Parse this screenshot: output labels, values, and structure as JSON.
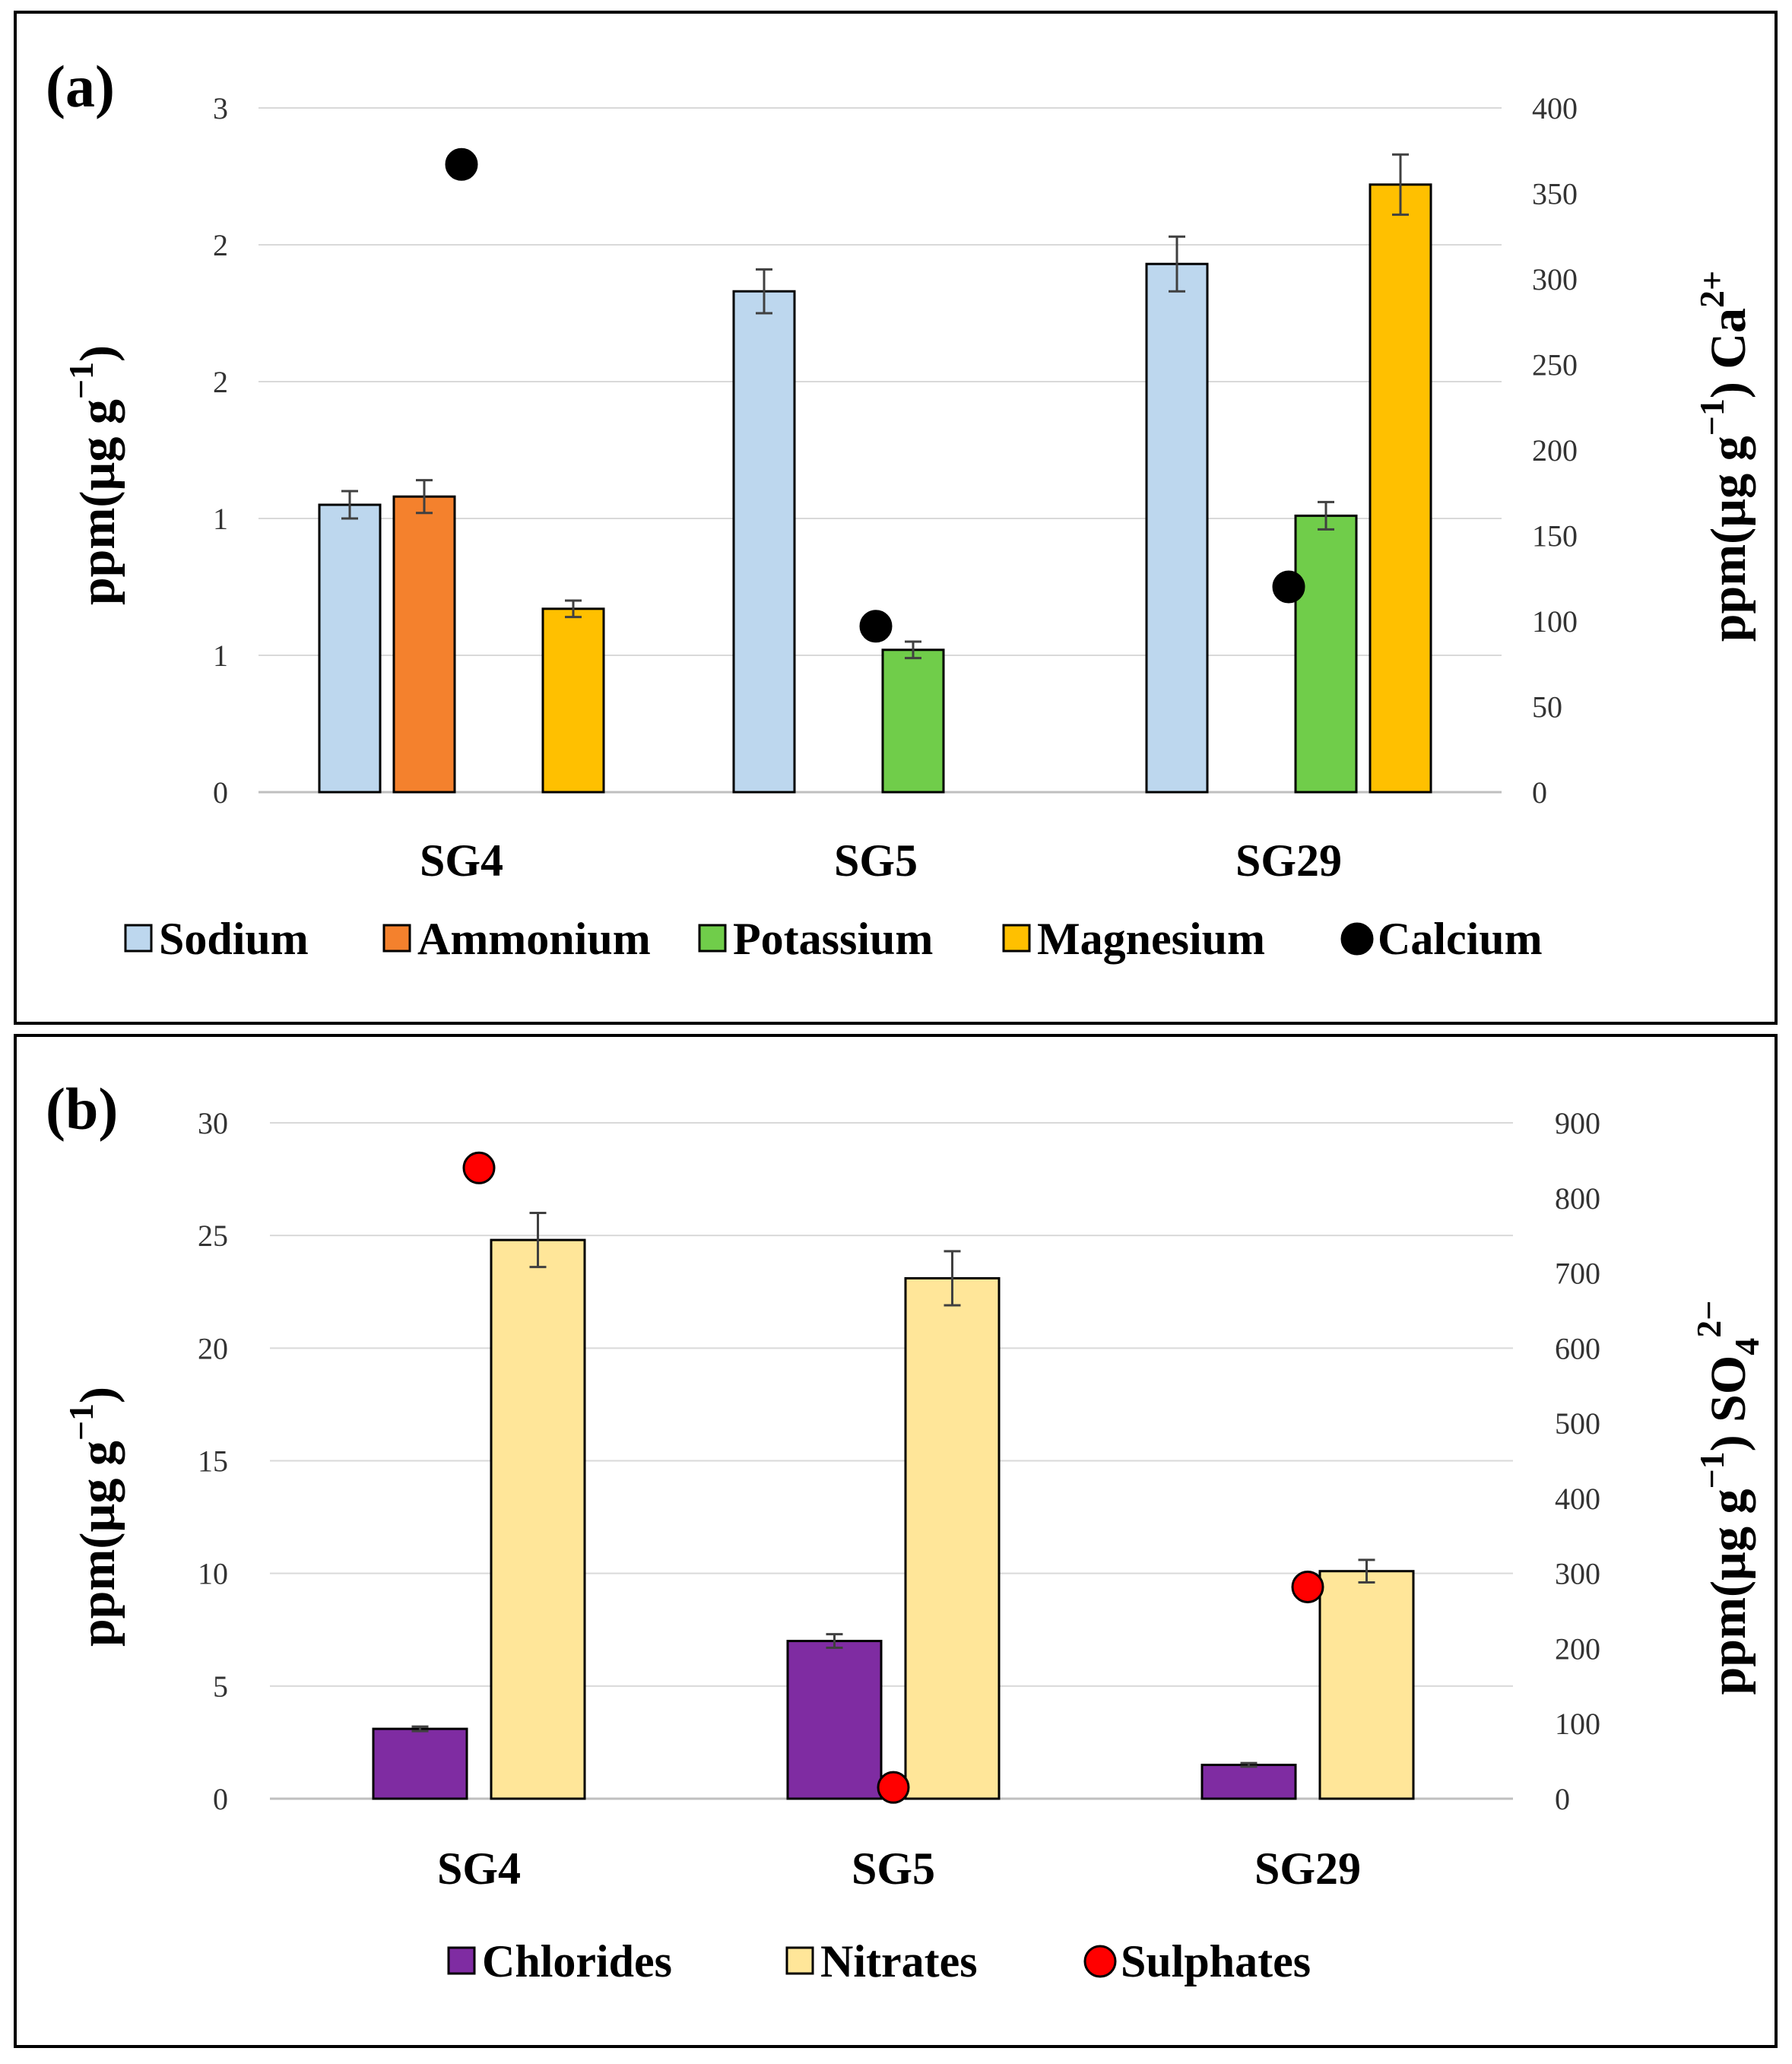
{
  "chart_data": [
    {
      "type": "bar",
      "panel_label": "(a)",
      "categories": [
        "SG4",
        "SG5",
        "SG29"
      ],
      "ylabel": "ppm(µg g",
      "ylabel_sup": "−1",
      "ylabel_end": ")",
      "y2label": "ppm(µg g",
      "y2label_sup": "−1",
      "y2label_mid": ") Ca",
      "y2label_sup2": "2+",
      "ylim": [
        0,
        2.5
      ],
      "ytick_values": [
        0,
        0.5,
        1,
        1.5,
        2,
        2.5
      ],
      "ytick_labels": [
        "0",
        "1",
        "1",
        "2",
        "2",
        "3"
      ],
      "y2lim": [
        0,
        400
      ],
      "y2ticks": [
        "0",
        "50",
        "100",
        "150",
        "200",
        "250",
        "300",
        "350",
        "400"
      ],
      "series": [
        {
          "name": "Sodium",
          "color": "#bdd7ee",
          "values": [
            1.05,
            1.83,
            1.93
          ],
          "errors": [
            0.05,
            0.08,
            0.1
          ],
          "axis": "left"
        },
        {
          "name": "Ammonium",
          "color": "#f4812d",
          "values": [
            1.08,
            null,
            null
          ],
          "errors": [
            0.06,
            null,
            null
          ],
          "axis": "left"
        },
        {
          "name": "Potassium",
          "color": "#70cd4a",
          "values": [
            null,
            0.52,
            1.01
          ],
          "errors": [
            null,
            0.03,
            0.05
          ],
          "axis": "left"
        },
        {
          "name": "Magnesium",
          "color": "#ffc000",
          "values": [
            0.67,
            null,
            2.22
          ],
          "errors": [
            0.03,
            null,
            0.11
          ],
          "axis": "left"
        },
        {
          "name": "Calcium",
          "color": "#000000",
          "values": [
            367,
            97,
            120
          ],
          "type": "scatter",
          "axis": "right"
        }
      ],
      "legend_position": "bottom"
    },
    {
      "type": "bar",
      "panel_label": "(b)",
      "categories": [
        "SG4",
        "SG5",
        "SG29"
      ],
      "ylabel": "ppm(µg g",
      "ylabel_sup": "−1",
      "ylabel_end": ")",
      "y2label": "ppm(µg g",
      "y2label_sup": "−1",
      "y2label_mid": ") SO",
      "y2label_sub": "4",
      "y2label_sup2": "2−",
      "ylim": [
        0,
        30
      ],
      "ytick_values": [
        0,
        5,
        10,
        15,
        20,
        25,
        30
      ],
      "ytick_labels": [
        "0",
        "5",
        "10",
        "15",
        "20",
        "25",
        "30"
      ],
      "y2lim": [
        0,
        900
      ],
      "y2ticks": [
        "0",
        "100",
        "200",
        "300",
        "400",
        "500",
        "600",
        "700",
        "800",
        "900"
      ],
      "series": [
        {
          "name": "Chlorides",
          "color": "#7f2ca2",
          "values": [
            3.1,
            7.0,
            1.5
          ],
          "errors": [
            0.1,
            0.3,
            0.08
          ],
          "axis": "left"
        },
        {
          "name": "Nitrates",
          "color": "#ffe699",
          "values": [
            24.8,
            23.1,
            10.1
          ],
          "errors": [
            1.2,
            1.2,
            0.5
          ],
          "axis": "left"
        },
        {
          "name": "Sulphates",
          "color": "#ff0000",
          "values": [
            840,
            15,
            282
          ],
          "type": "scatter",
          "axis": "right"
        }
      ],
      "legend_position": "bottom"
    }
  ]
}
